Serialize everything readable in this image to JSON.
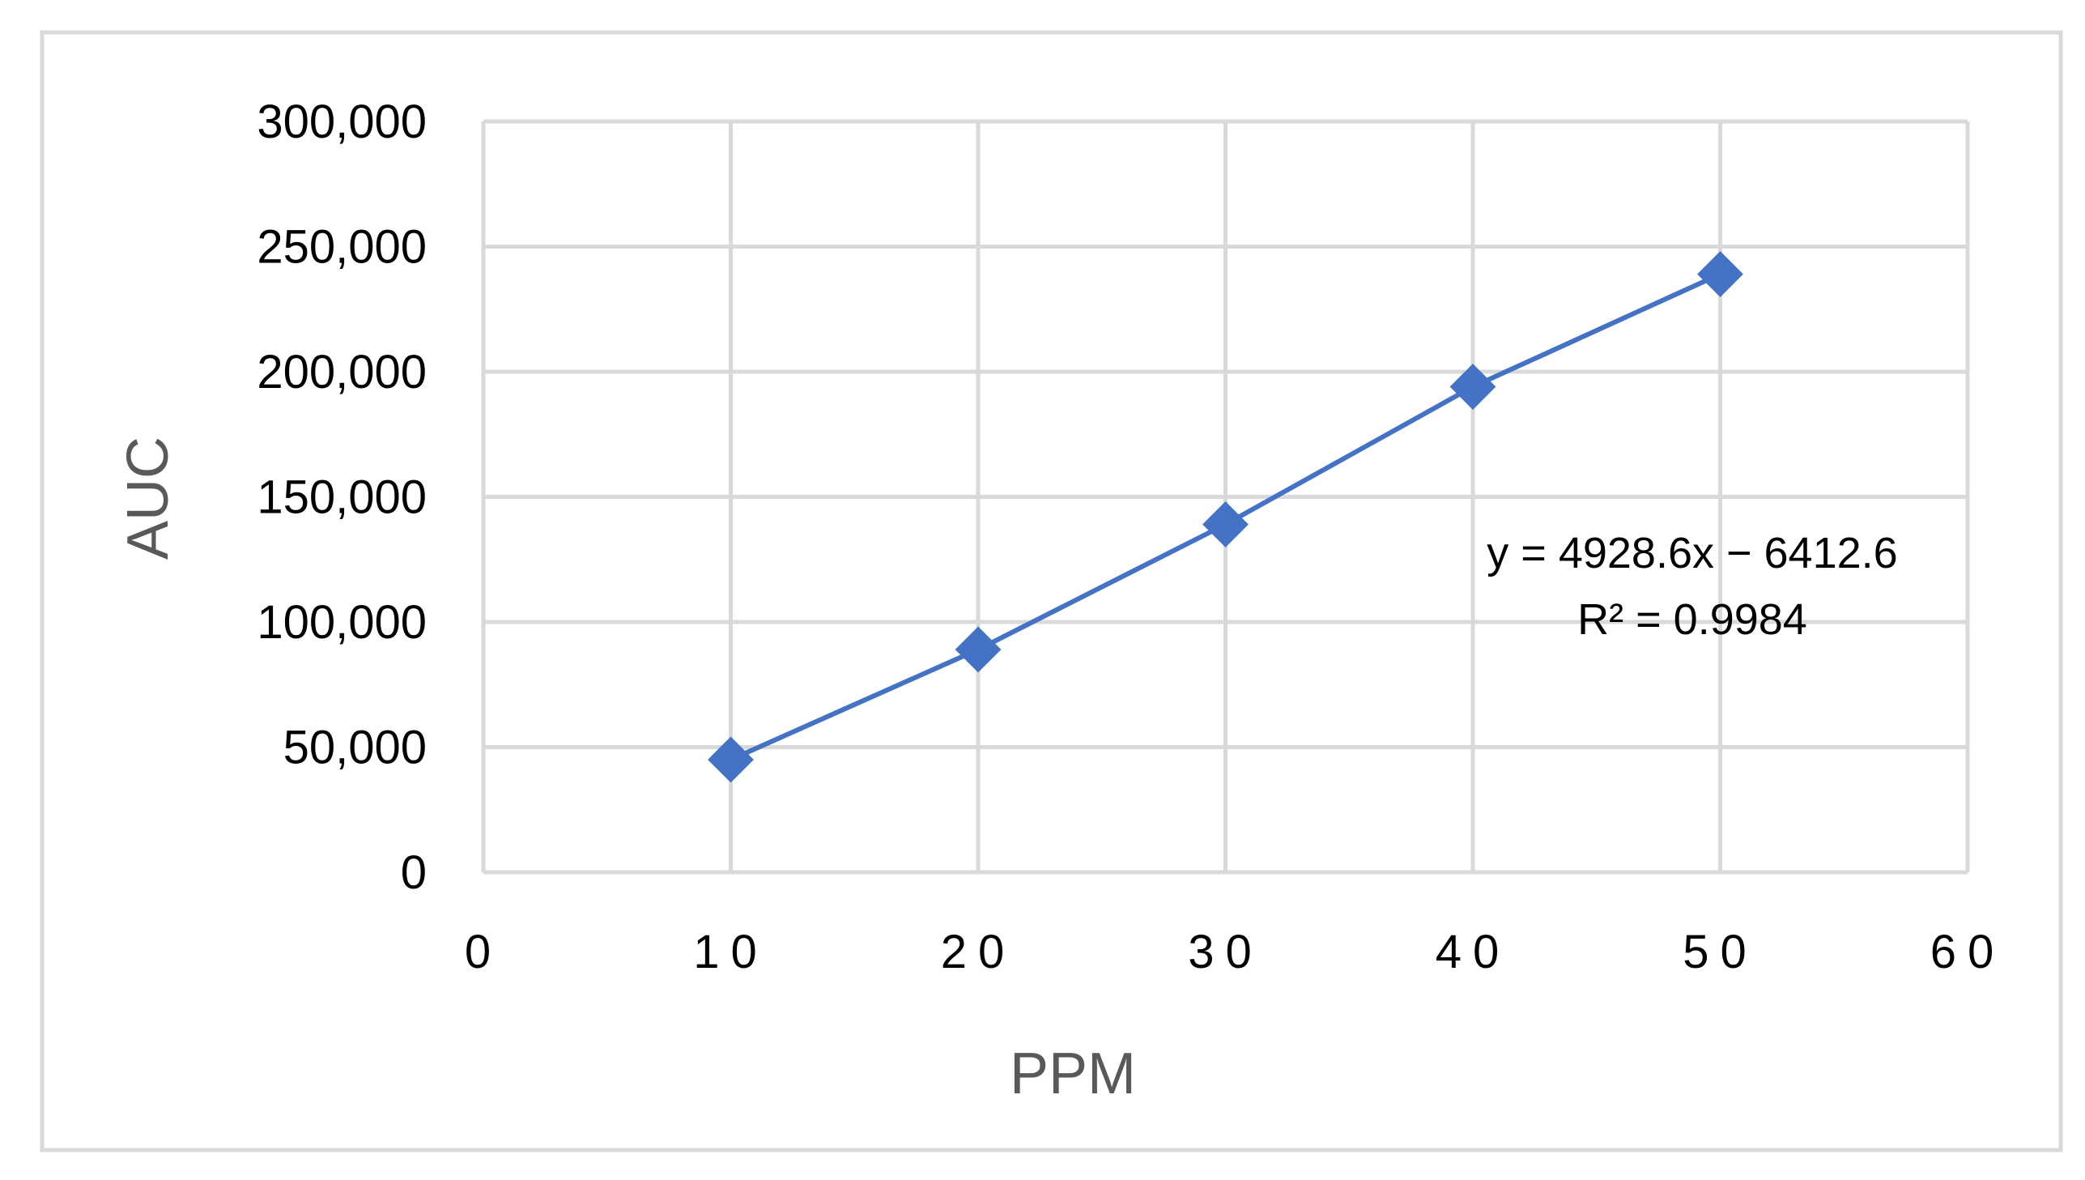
{
  "chart_data": {
    "type": "scatter",
    "title": "",
    "xlabel": "PPM",
    "ylabel": "AUC",
    "xlim": [
      0,
      60
    ],
    "ylim": [
      0,
      300000
    ],
    "x_ticks": [
      0,
      10,
      20,
      30,
      40,
      50,
      60
    ],
    "y_ticks": [
      0,
      50000,
      100000,
      150000,
      200000,
      250000,
      300000
    ],
    "x_tick_labels": [
      "0",
      "10",
      "20",
      "30",
      "40",
      "50",
      "60"
    ],
    "y_tick_labels": [
      "0",
      "50,000",
      "100,000",
      "150,000",
      "200,000",
      "250,000",
      "300,000"
    ],
    "grid": true,
    "legend": "none",
    "series": [
      {
        "x": [
          10,
          20,
          30,
          40,
          50
        ],
        "y": [
          45000,
          89000,
          139000,
          194000,
          239000
        ],
        "marker": "diamond",
        "line": "straight",
        "color": "#4472C4"
      }
    ],
    "trendline": {
      "equation": "y = 4928.6x − 6412.6",
      "r_squared": "R² = 0.9984"
    }
  },
  "colors": {
    "series": "#4472C4",
    "grid": "#d9d9d9",
    "frame": "#d9d9d9",
    "axis_title": "#595959"
  }
}
